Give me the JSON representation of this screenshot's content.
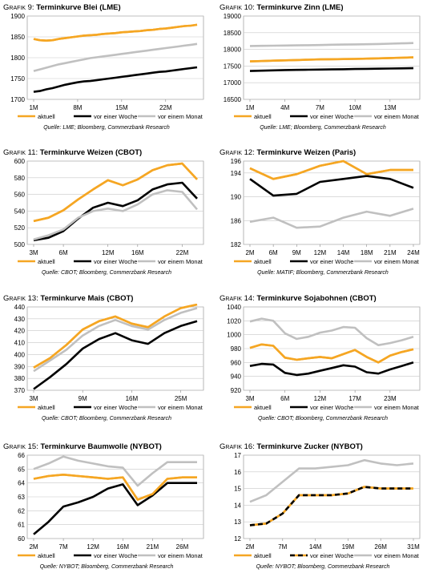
{
  "colors": {
    "aktuell": "#f5a623",
    "woche": "#000000",
    "monat": "#c0c0c0",
    "grid": "#c8c8c8",
    "dashed_gap": "#f5a623"
  },
  "chart_data": [
    {
      "id": "p9",
      "type": "line",
      "prefix": "Grafik",
      "number": "9:",
      "title": "Terminkurve Blei (LME)",
      "x_ticks": [
        "1M",
        "8M",
        "15M",
        "22M"
      ],
      "x_tick_idx": [
        0,
        7,
        14,
        21
      ],
      "n": 27,
      "ylim": [
        1700,
        1900
      ],
      "yticks": [
        1700,
        1750,
        1800,
        1850,
        1900
      ],
      "series": [
        {
          "name": "aktuell",
          "values": [
            1845,
            1842,
            1841,
            1842,
            1845,
            1847,
            1849,
            1851,
            1853,
            1854,
            1855,
            1857,
            1858,
            1859,
            1861,
            1862,
            1863,
            1864,
            1866,
            1867,
            1869,
            1870,
            1872,
            1874,
            1876,
            1877,
            1879
          ]
        },
        {
          "name": "vor einer Woche",
          "values": [
            1718,
            1720,
            1724,
            1727,
            1731,
            1735,
            1738,
            1741,
            1743,
            1744,
            1746,
            1748,
            1750,
            1752,
            1754,
            1756,
            1758,
            1760,
            1762,
            1764,
            1766,
            1767,
            1769,
            1771,
            1773,
            1775,
            1777
          ]
        },
        {
          "name": "vor einem Monat",
          "values": [
            1768,
            1772,
            1776,
            1780,
            1784,
            1787,
            1790,
            1793,
            1796,
            1799,
            1801,
            1803,
            1805,
            1807,
            1809,
            1811,
            1813,
            1815,
            1817,
            1819,
            1821,
            1823,
            1825,
            1827,
            1829,
            1831,
            1833
          ]
        }
      ],
      "source": "Quelle: LME; Bloomberg, Commerzbank Research"
    },
    {
      "id": "p10",
      "type": "line",
      "prefix": "Grafik",
      "number": "10:",
      "title": "Terminkurve Zinn (LME)",
      "x_ticks": [
        "1M",
        "4M",
        "7M",
        "10M",
        "13M"
      ],
      "x_tick_idx": [
        0,
        3,
        6,
        9,
        12
      ],
      "n": 15,
      "ylim": [
        16500,
        19000
      ],
      "yticks": [
        16500,
        17000,
        17500,
        18000,
        18500,
        19000
      ],
      "series": [
        {
          "name": "aktuell",
          "values": [
            17640,
            17650,
            17660,
            17670,
            17680,
            17690,
            17700,
            17705,
            17710,
            17715,
            17720,
            17730,
            17740,
            17750,
            17760
          ]
        },
        {
          "name": "vor einer Woche",
          "values": [
            17350,
            17360,
            17370,
            17380,
            17385,
            17390,
            17395,
            17400,
            17405,
            17410,
            17415,
            17420,
            17425,
            17430,
            17435
          ]
        },
        {
          "name": "vor einem Monat",
          "values": [
            18100,
            18105,
            18110,
            18115,
            18120,
            18125,
            18130,
            18140,
            18145,
            18150,
            18155,
            18160,
            18170,
            18180,
            18190
          ]
        }
      ],
      "source": "Quelle: LME; Bloomberg, Commerzbank Research"
    },
    {
      "id": "p11",
      "type": "line",
      "prefix": "Grafik",
      "number": "11:",
      "title": "Terminkurve Weizen (CBOT)",
      "x_ticks": [
        "3M",
        "6M",
        "12M",
        "16M",
        "22M"
      ],
      "x_tick_idx": [
        0,
        2,
        5,
        7,
        10
      ],
      "n": 12,
      "ylim": [
        500,
        600
      ],
      "yticks": [
        500,
        520,
        540,
        560,
        580,
        600
      ],
      "series": [
        {
          "name": "aktuell",
          "values": [
            528,
            532,
            541,
            554,
            566,
            577,
            571,
            578,
            589,
            595,
            597,
            578
          ]
        },
        {
          "name": "vor einer Woche",
          "values": [
            505,
            508,
            516,
            531,
            544,
            550,
            546,
            553,
            566,
            572,
            574,
            555
          ]
        },
        {
          "name": "vor einem Monat",
          "values": [
            506,
            511,
            518,
            532,
            540,
            543,
            540,
            548,
            560,
            565,
            563,
            542
          ]
        }
      ],
      "source": "Quelle: CBOT; Bloomberg, Commerzbank Research"
    },
    {
      "id": "p12",
      "type": "line",
      "prefix": "Grafik",
      "number": "12:",
      "title": "Terminkurve Weizen (Paris)",
      "x_ticks": [
        "2M",
        "6M",
        "9M",
        "12M",
        "14M",
        "18M",
        "21M",
        "24M"
      ],
      "x_tick_idx": [
        0,
        1,
        2,
        3,
        4,
        5,
        6,
        7
      ],
      "n": 8,
      "ylim": [
        182,
        196
      ],
      "yticks": [
        182,
        186,
        190,
        194,
        196
      ],
      "series": [
        {
          "name": "aktuell",
          "values": [
            194.8,
            193.0,
            193.8,
            195.2,
            196.0,
            193.8,
            194.5,
            194.5
          ]
        },
        {
          "name": "vor einer Woche",
          "values": [
            193.0,
            190.2,
            190.5,
            192.5,
            193.0,
            193.5,
            193.0,
            191.5
          ]
        },
        {
          "name": "vor einem Monat",
          "values": [
            185.8,
            186.5,
            184.8,
            185.0,
            186.5,
            187.5,
            186.8,
            188.0
          ]
        }
      ],
      "source": "Quelle: MATIF; Bloomberg, Commerzbank Research"
    },
    {
      "id": "p13",
      "type": "line",
      "prefix": "Grafik",
      "number": "13:",
      "title": "Terminkurve Mais (CBOT)",
      "x_ticks": [
        "3M",
        "9M",
        "16M",
        "25M"
      ],
      "x_tick_idx": [
        0,
        3,
        6,
        9
      ],
      "n": 11,
      "ylim": [
        370,
        440
      ],
      "yticks": [
        370,
        380,
        390,
        400,
        410,
        420,
        430,
        440
      ],
      "series": [
        {
          "name": "aktuell",
          "values": [
            389,
            397,
            408,
            421,
            428,
            432,
            426,
            423,
            432,
            439,
            442
          ]
        },
        {
          "name": "vor einer Woche",
          "values": [
            371,
            381,
            392,
            405,
            413,
            418,
            412,
            409,
            418,
            424,
            428
          ]
        },
        {
          "name": "vor einem Monat",
          "values": [
            386,
            395,
            404,
            416,
            424,
            429,
            424,
            421,
            429,
            435,
            439
          ]
        }
      ],
      "source": "Quelle: CBOT; Bloomberg, Commerzbank Research"
    },
    {
      "id": "p14",
      "type": "line",
      "prefix": "Grafik",
      "number": "14:",
      "title": "Terminkurve Sojabohnen (CBOT)",
      "x_ticks": [
        "3M",
        "6M",
        "12M",
        "17M",
        "23M"
      ],
      "x_tick_idx": [
        0,
        3,
        6,
        9,
        12
      ],
      "n": 15,
      "ylim": [
        920,
        1040
      ],
      "yticks": [
        920,
        940,
        960,
        980,
        1000,
        1020,
        1040
      ],
      "series": [
        {
          "name": "aktuell",
          "values": [
            981,
            986,
            984,
            967,
            964,
            966,
            968,
            966,
            972,
            978,
            968,
            960,
            970,
            975,
            979
          ]
        },
        {
          "name": "vor einer Woche",
          "values": [
            955,
            958,
            957,
            945,
            942,
            944,
            948,
            952,
            956,
            954,
            946,
            944,
            950,
            955,
            960
          ]
        },
        {
          "name": "vor einem Monat",
          "values": [
            1019,
            1023,
            1020,
            1002,
            994,
            997,
            1003,
            1006,
            1011,
            1010,
            995,
            985,
            988,
            992,
            997
          ]
        }
      ],
      "source": "Quelle: CBOT; Bloomberg, Commerzbank Research"
    },
    {
      "id": "p15",
      "type": "line",
      "prefix": "Grafik",
      "number": "15:",
      "title": "Terminkurve Baumwolle (NYBOT)",
      "x_ticks": [
        "2M",
        "7M",
        "12M",
        "16M",
        "21M",
        "26M"
      ],
      "x_tick_idx": [
        0,
        2,
        4,
        6,
        8,
        10
      ],
      "n": 12,
      "ylim": [
        60,
        66
      ],
      "yticks": [
        60,
        61,
        62,
        63,
        64,
        65,
        66
      ],
      "series": [
        {
          "name": "aktuell",
          "values": [
            64.3,
            64.5,
            64.6,
            64.5,
            64.4,
            64.3,
            64.4,
            62.8,
            63.2,
            64.3,
            64.4,
            64.4
          ]
        },
        {
          "name": "vor einer Woche",
          "values": [
            60.3,
            61.2,
            62.3,
            62.6,
            63.0,
            63.6,
            63.9,
            62.4,
            63.1,
            64.0,
            64.0,
            64.0
          ]
        },
        {
          "name": "vor einem Monat",
          "values": [
            65.0,
            65.4,
            65.9,
            65.6,
            65.4,
            65.2,
            65.1,
            63.8,
            64.7,
            65.5,
            65.5,
            65.5
          ]
        }
      ],
      "source": "Quelle: NYBOT; Bloomberg, Commerzbank Research"
    },
    {
      "id": "p16",
      "type": "line",
      "prefix": "Grafik",
      "number": "16:",
      "title": "Terminkurve Zucker (NYBOT)",
      "x_ticks": [
        "2M",
        "7M",
        "14M",
        "19M",
        "26M",
        "31M"
      ],
      "x_tick_idx": [
        0,
        2,
        4,
        6,
        8,
        10
      ],
      "n": 11,
      "ylim": [
        12.0,
        17.0
      ],
      "yticks": [
        12.0,
        13.0,
        14.0,
        15.0,
        16.0,
        17.0
      ],
      "series": [
        {
          "name": "aktuell",
          "values": [
            12.8,
            12.9,
            13.5,
            14.6,
            14.6,
            14.6,
            14.7,
            15.1,
            15.0,
            15.0,
            15.0
          ]
        },
        {
          "name": "vor einer Woche",
          "values": [
            12.8,
            12.9,
            13.5,
            14.6,
            14.6,
            14.6,
            14.7,
            15.1,
            15.0,
            15.0,
            15.0
          ],
          "dashed": true
        },
        {
          "name": "vor einem Monat",
          "values": [
            14.2,
            14.6,
            15.4,
            16.2,
            16.2,
            16.3,
            16.4,
            16.7,
            16.5,
            16.4,
            16.5
          ]
        }
      ],
      "source": "Quelle: NYBOT; Bloomberg, Commerzbank Research"
    }
  ]
}
